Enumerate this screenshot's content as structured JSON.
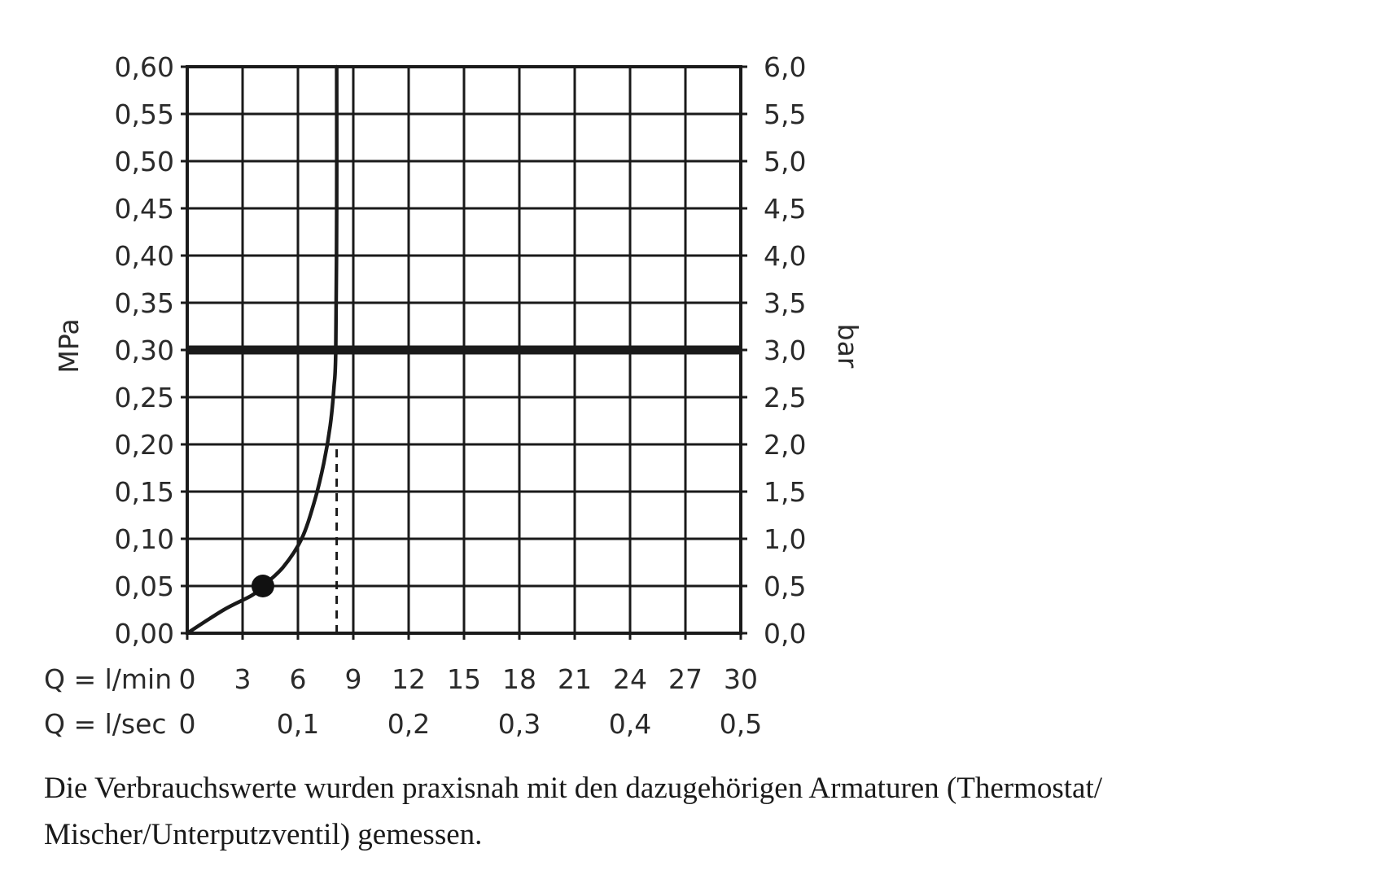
{
  "chart_data": {
    "type": "line",
    "x_unit_label": "Q = l/min",
    "x2_unit_label": "Q = l/sec",
    "y_left_label": "MPa",
    "y_right_label": "bar",
    "x_ticks": [
      "0",
      "3",
      "6",
      "9",
      "12",
      "15",
      "18",
      "21",
      "24",
      "27",
      "30"
    ],
    "x2_ticks": [
      {
        "x": 0,
        "label": "0"
      },
      {
        "x": 6,
        "label": "0,1"
      },
      {
        "x": 12,
        "label": "0,2"
      },
      {
        "x": 18,
        "label": "0,3"
      },
      {
        "x": 24,
        "label": "0,4"
      },
      {
        "x": 30,
        "label": "0,5"
      }
    ],
    "y_left_ticks": [
      "0,00",
      "0,05",
      "0,10",
      "0,15",
      "0,20",
      "0,25",
      "0,30",
      "0,35",
      "0,40",
      "0,45",
      "0,50",
      "0,55",
      "0,60"
    ],
    "y_right_ticks": [
      "0,0",
      "0,5",
      "1,0",
      "1,5",
      "2,0",
      "2,5",
      "3,0",
      "3,5",
      "4,0",
      "4,5",
      "5,0",
      "5,5",
      "6,0"
    ],
    "xlim": [
      0,
      30
    ],
    "ylim": [
      0,
      0.6
    ],
    "grid": true,
    "series": [
      {
        "values_x": [
          0,
          2,
          3.5,
          4.1,
          5.2,
          6.2,
          6.9,
          7.4,
          7.75,
          7.95,
          8.05,
          8.1,
          8.1
        ],
        "values_y": [
          0,
          0.025,
          0.04,
          0.05,
          0.07,
          0.1,
          0.14,
          0.18,
          0.22,
          0.26,
          0.3,
          0.45,
          0.6
        ],
        "color": "#1a1a1a"
      }
    ],
    "reference_lines": [
      {
        "orientation": "horizontal",
        "y": 0.3,
        "style": "solid-thick",
        "color": "#1a1a1a"
      },
      {
        "orientation": "vertical",
        "x": 8.1,
        "y_range": [
          0,
          0.2
        ],
        "style": "dashed",
        "color": "#1a1a1a"
      }
    ],
    "marker": {
      "x": 4.1,
      "y": 0.05,
      "color": "#111111"
    }
  },
  "caption": {
    "line1": "Die Verbrauchswerte wurden praxisnah mit den dazugehörigen Armaturen (Thermostat/",
    "line2": "Mischer/Unterputzventil) gemessen."
  }
}
